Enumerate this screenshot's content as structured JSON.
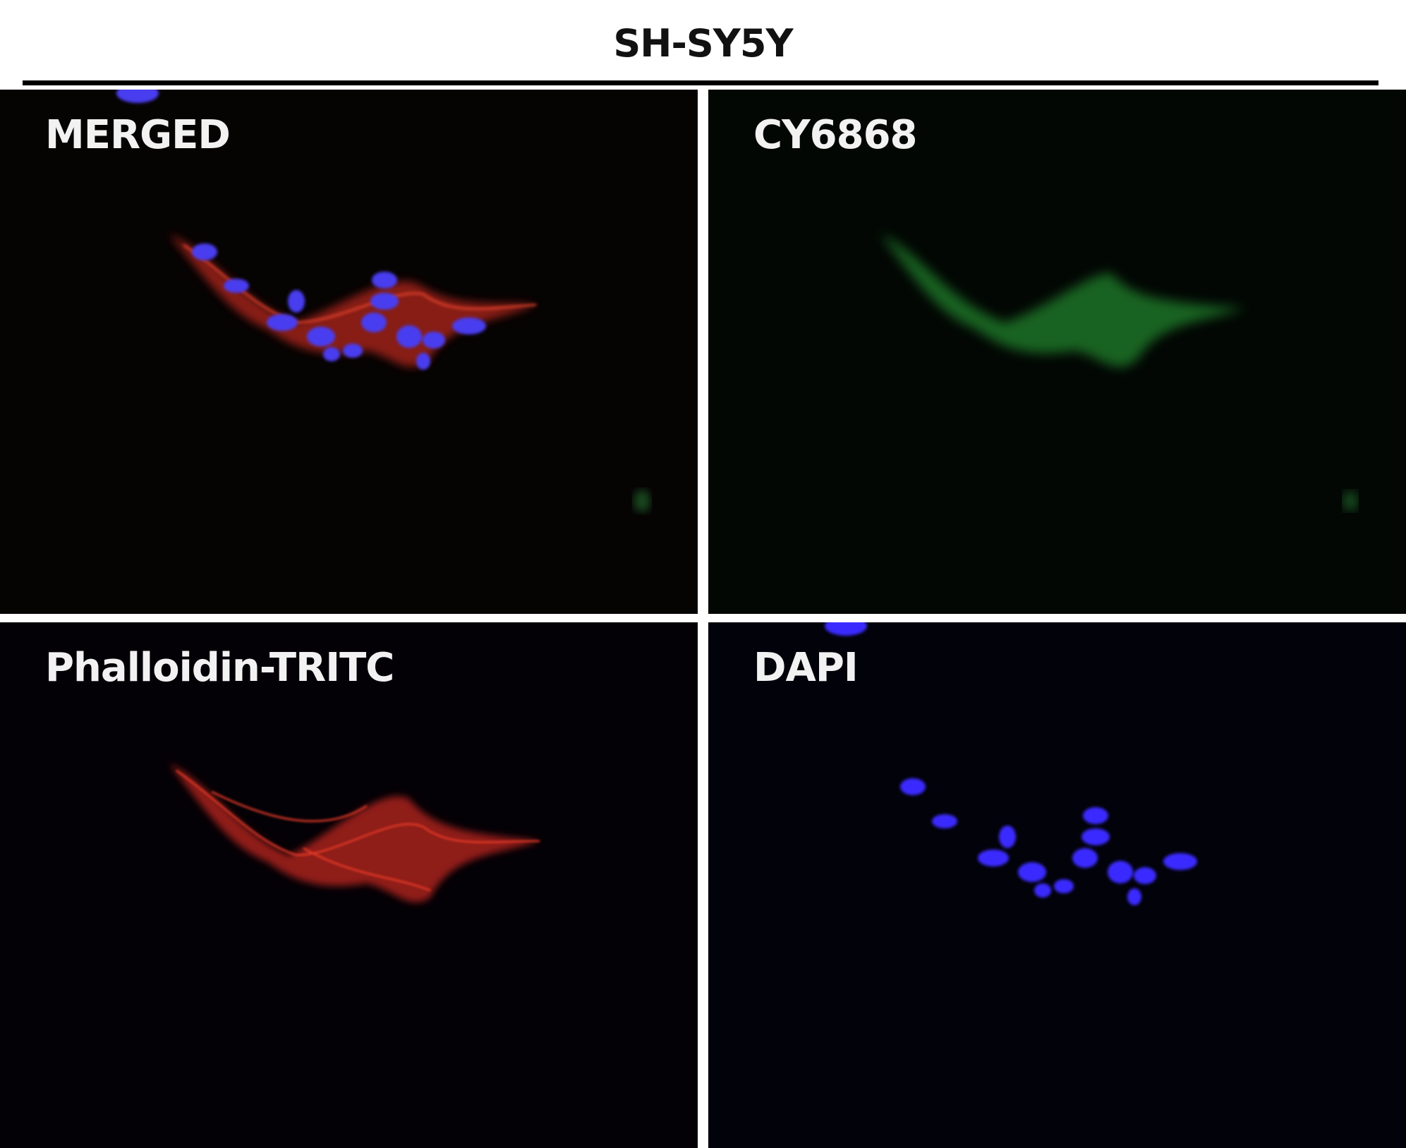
{
  "figure": {
    "title": "SH-SY5Y",
    "panels": [
      {
        "label": "MERGED",
        "channel": "merged"
      },
      {
        "label": "CY6868",
        "channel": "green",
        "color": "#2fa83a"
      },
      {
        "label": "Phalloidin-TRITC",
        "channel": "red",
        "color": "#c8241c"
      },
      {
        "label": "DAPI",
        "channel": "blue",
        "color": "#3a2cff"
      }
    ]
  }
}
